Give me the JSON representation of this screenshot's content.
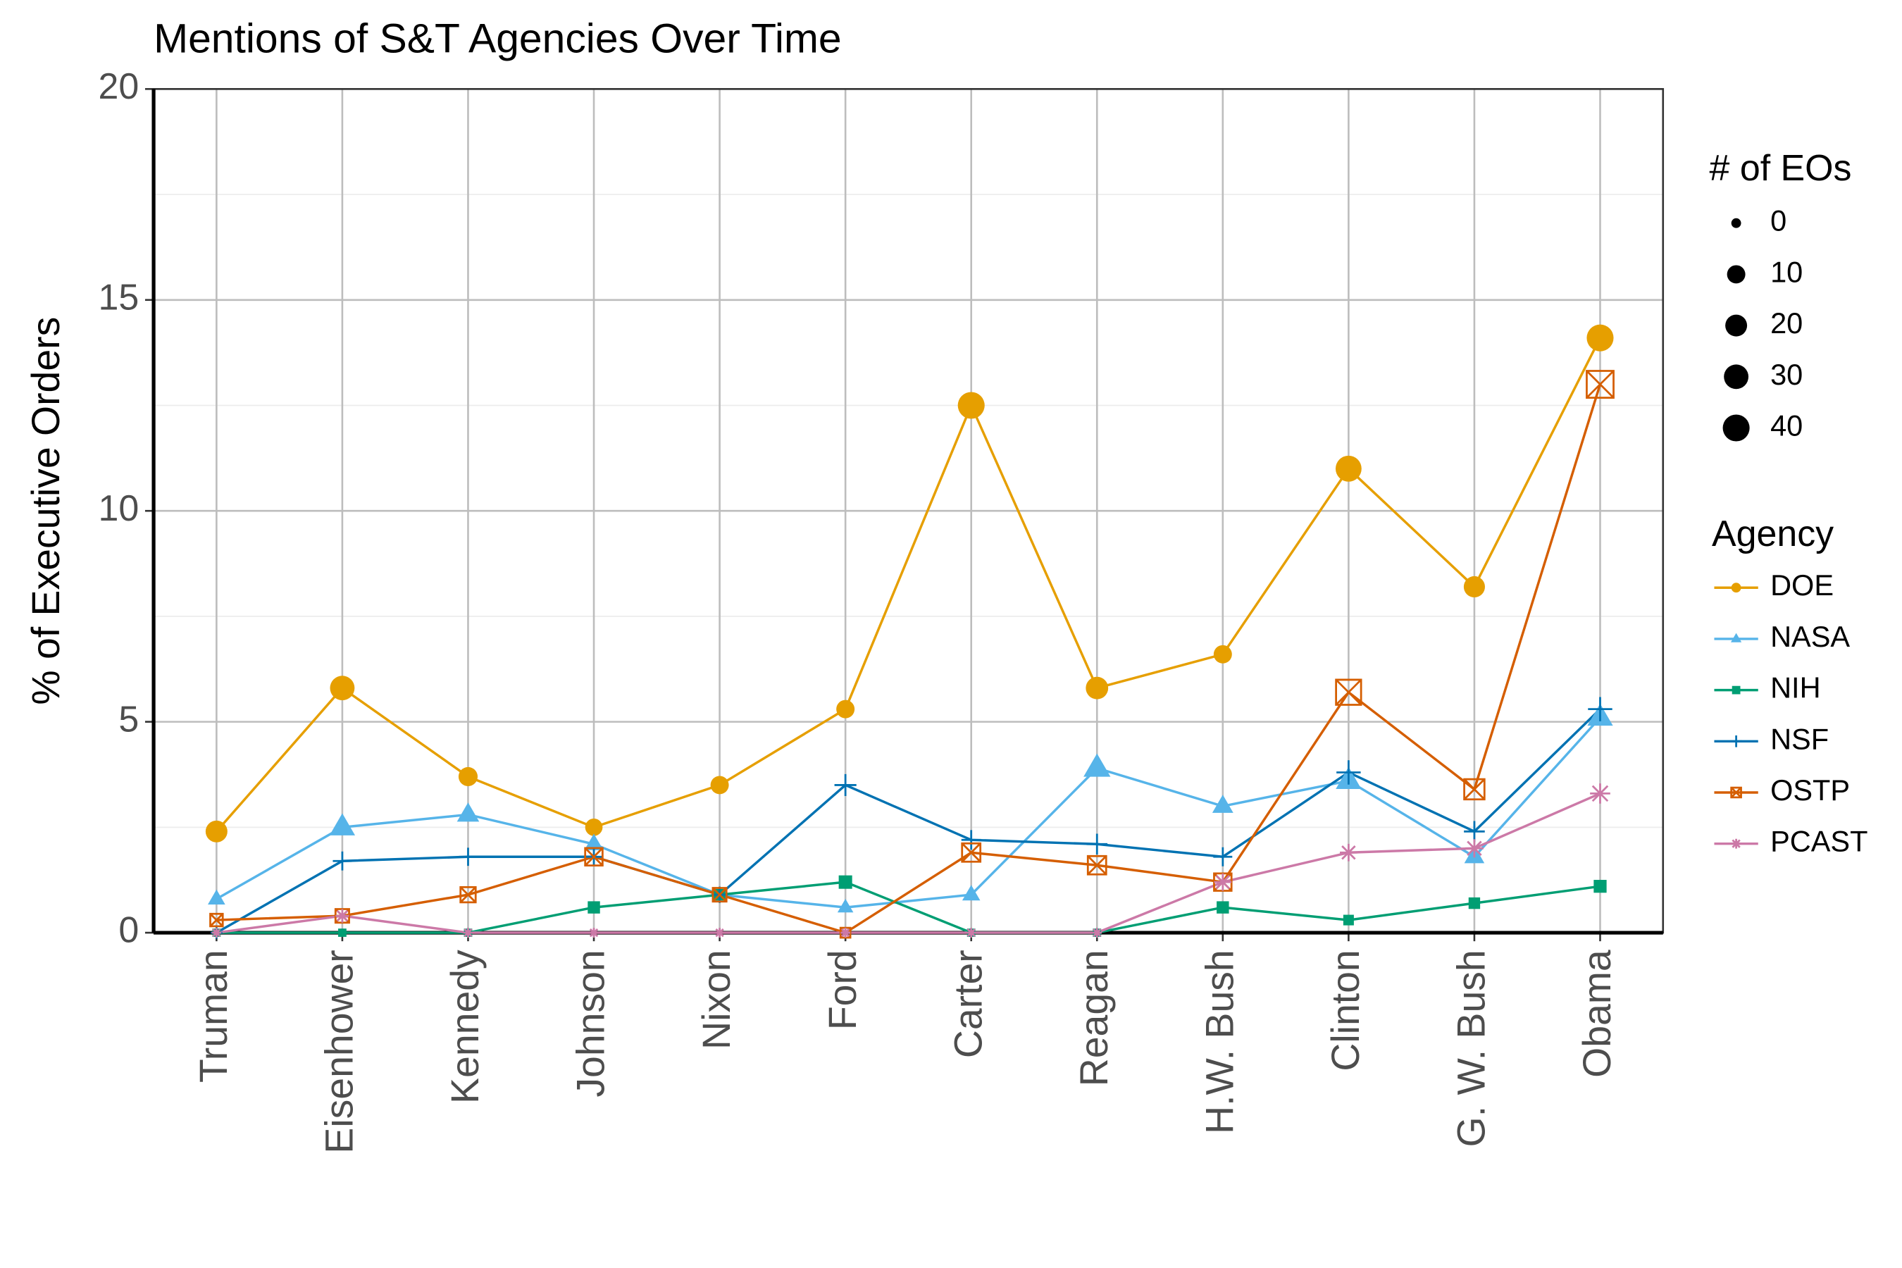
{
  "chart_data": {
    "type": "line",
    "title": "Mentions of S&T Agencies Over Time",
    "y_label": "% of Executive Orders",
    "categories": [
      "Truman",
      "Eisenhower",
      "Kennedy",
      "Johnson",
      "Nixon",
      "Ford",
      "Carter",
      "Reagan",
      "H.W. Bush",
      "Clinton",
      "G. W. Bush",
      "Obama"
    ],
    "ylim": [
      0,
      20
    ],
    "yticks": [
      0,
      5,
      10,
      15,
      20
    ],
    "grid": true,
    "size_legend": {
      "title": "# of EOs",
      "values": [
        0,
        10,
        20,
        30,
        40
      ]
    },
    "legend_title": "Agency",
    "series": [
      {
        "name": "DOE",
        "color": "#E69F00",
        "marker": "circle",
        "values": [
          2.4,
          5.8,
          3.7,
          2.5,
          3.5,
          5.3,
          12.5,
          5.8,
          6.6,
          11,
          8.2,
          14.1
        ],
        "sizes": [
          20,
          30,
          12,
          8,
          10,
          10,
          40,
          22,
          10,
          36,
          18,
          40
        ]
      },
      {
        "name": "NASA",
        "color": "#56B4E9",
        "marker": "triangle",
        "values": [
          0.8,
          2.5,
          2.8,
          2.1,
          0.9,
          0.6,
          0.9,
          3.9,
          3.0,
          3.6,
          1.8,
          5.1
        ],
        "sizes": [
          5,
          25,
          15,
          8,
          2,
          3,
          6,
          30,
          12,
          25,
          10,
          25
        ]
      },
      {
        "name": "NIH",
        "color": "#009E73",
        "marker": "square",
        "values": [
          0,
          0,
          0,
          0.6,
          0.9,
          1.2,
          0,
          0,
          0.6,
          0.3,
          0.7,
          1.1
        ],
        "sizes": [
          0,
          0,
          0,
          3,
          2,
          5,
          0,
          0,
          3,
          1,
          2,
          4
        ]
      },
      {
        "name": "NSF",
        "color": "#0072B2",
        "marker": "plus",
        "values": [
          0,
          1.7,
          1.8,
          1.8,
          0.9,
          3.5,
          2.2,
          2.1,
          1.8,
          3.8,
          2.4,
          5.3
        ],
        "sizes": [
          0,
          5,
          4,
          4,
          2,
          10,
          6,
          8,
          5,
          15,
          8,
          15
        ]
      },
      {
        "name": "OSTP",
        "color": "#D55E00",
        "marker": "boxx",
        "values": [
          0.3,
          0.4,
          0.9,
          1.8,
          0.9,
          0,
          1.9,
          1.6,
          1.2,
          5.7,
          3.4,
          13
        ],
        "sizes": [
          1,
          2,
          4,
          8,
          2,
          0,
          10,
          10,
          8,
          32,
          15,
          40
        ]
      },
      {
        "name": "PCAST",
        "color": "#CC79A7",
        "marker": "asterisk",
        "values": [
          0,
          0.4,
          0,
          0,
          0,
          0,
          0,
          0,
          1.2,
          1.9,
          2.0,
          3.3
        ],
        "sizes": [
          0,
          2,
          0,
          0,
          0,
          0,
          0,
          0,
          8,
          8,
          10,
          15
        ]
      }
    ]
  }
}
